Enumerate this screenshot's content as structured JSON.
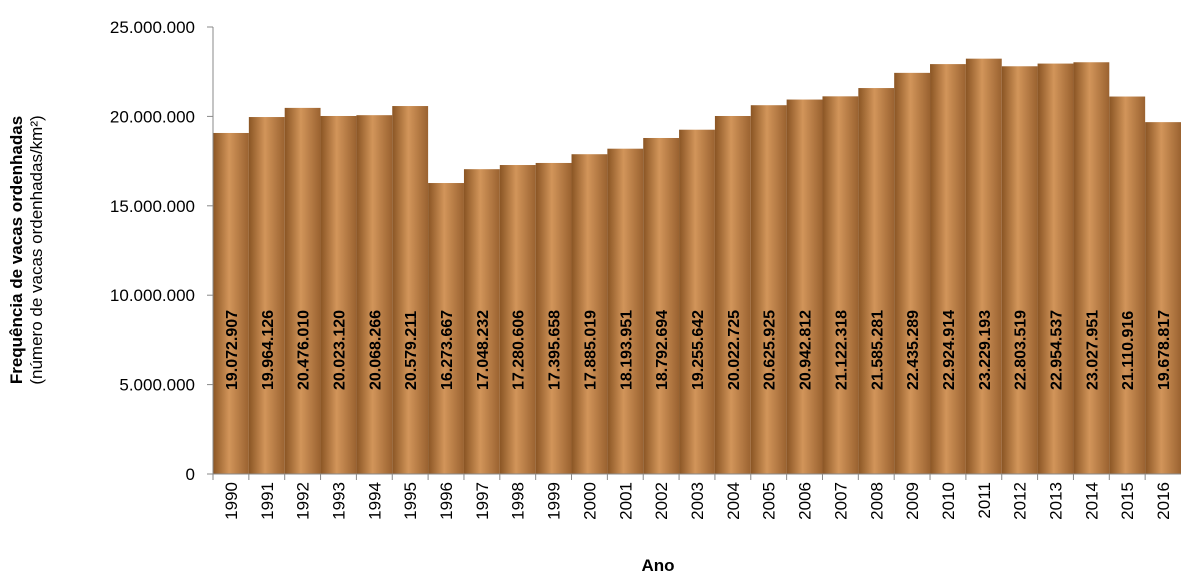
{
  "chart_data": {
    "type": "bar",
    "y_title": "Frequência de vacas ordenhadas",
    "y_subtitle": "(número de vacas ordenhadas/km²)",
    "x_title": "Ano",
    "categories": [
      "1990",
      "1991",
      "1992",
      "1993",
      "1994",
      "1995",
      "1996",
      "1997",
      "1998",
      "1999",
      "2000",
      "2001",
      "2002",
      "2003",
      "2004",
      "2005",
      "2006",
      "2007",
      "2008",
      "2009",
      "2010",
      "2011",
      "2012",
      "2013",
      "2014",
      "2015",
      "2016"
    ],
    "values": [
      19072907,
      19964126,
      20476010,
      20023120,
      20068266,
      20579211,
      16273667,
      17048232,
      17280606,
      17395658,
      17885019,
      18193951,
      18792694,
      19255642,
      20022725,
      20625925,
      20942812,
      21122318,
      21585281,
      22435289,
      22924914,
      23229193,
      22803519,
      22954537,
      23027951,
      21110916,
      19678817
    ],
    "value_labels": [
      "19.072.907",
      "19.964.126",
      "20.476.010",
      "20.023.120",
      "20.068.266",
      "20.579.211",
      "16.273.667",
      "17.048.232",
      "17.280.606",
      "17.395.658",
      "17.885.019",
      "18.193.951",
      "18.792.694",
      "19.255.642",
      "20.022.725",
      "20.625.925",
      "20.942.812",
      "21.122.318",
      "21.585.281",
      "22.435.289",
      "22.924.914",
      "23.229.193",
      "22.803.519",
      "22.954.537",
      "23.027.951",
      "21.110.916",
      "19.678.817"
    ],
    "color": "#d2955a",
    "ylim": [
      0,
      25000000
    ],
    "yticks": [
      0,
      {
        "value": 5000000,
        "label": "5.000.000"
      },
      {
        "value": 10000000,
        "label": "10.000.000"
      },
      {
        "value": 15000000,
        "label": "15.000.000"
      },
      {
        "value": 20000000,
        "label": "20.000.000"
      },
      {
        "value": 25000000,
        "label": "25.000.000"
      }
    ],
    "grid": false
  }
}
